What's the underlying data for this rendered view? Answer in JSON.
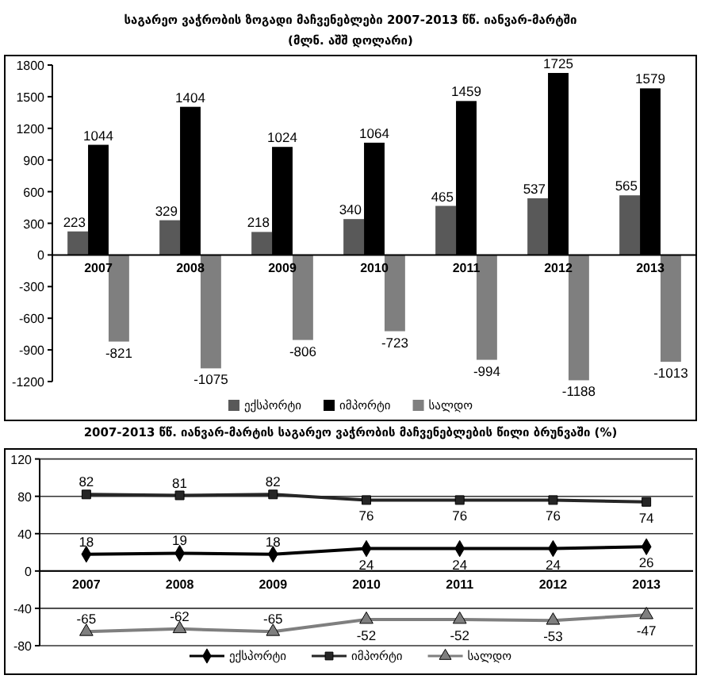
{
  "chart_data": [
    {
      "type": "bar",
      "title": "საგარეო ვაჭრობის ზოგადი მაჩვენებლები 2007-2013 წწ. იანვარ-მარტში",
      "subtitle": "(მლნ. აშშ დოლარი)",
      "categories": [
        "2007",
        "2008",
        "2009",
        "2010",
        "2011",
        "2012",
        "2013"
      ],
      "series": [
        {
          "name": "ექსპორტი",
          "color": "#595959",
          "values": [
            223,
            329,
            218,
            340,
            465,
            537,
            565
          ]
        },
        {
          "name": "იმპორტი",
          "color": "#000000",
          "values": [
            1044,
            1404,
            1024,
            1064,
            1459,
            1725,
            1579
          ]
        },
        {
          "name": "სალდო",
          "color": "#7f7f7f",
          "values": [
            -821,
            -1075,
            -806,
            -723,
            -994,
            -1188,
            -1013
          ]
        }
      ],
      "ylim": [
        -1200,
        1800
      ],
      "yticks": [
        -1200,
        -900,
        -600,
        -300,
        0,
        300,
        600,
        900,
        1200,
        1500,
        1800
      ],
      "data_labels": true,
      "legend": "bottom"
    },
    {
      "type": "line",
      "title": "2007-2013 წწ. იანვარ-მარტის საგარეო ვაჭრობის მაჩვენებლების წილი ბრუნვაში (%)",
      "categories": [
        "2007",
        "2008",
        "2009",
        "2010",
        "2011",
        "2012",
        "2013"
      ],
      "series": [
        {
          "name": "ექსპორტი",
          "color": "#000000",
          "marker": "diamond",
          "values": [
            18,
            19,
            18,
            24,
            24,
            24,
            26
          ]
        },
        {
          "name": "იმპორტი",
          "color": "#262626",
          "marker": "square",
          "values": [
            82,
            81,
            82,
            76,
            76,
            76,
            74
          ]
        },
        {
          "name": "სალდო",
          "color": "#7f7f7f",
          "marker": "triangle",
          "values": [
            -65,
            -62,
            -65,
            -52,
            -52,
            -53,
            -47
          ]
        }
      ],
      "ylim": [
        -80,
        120
      ],
      "yticks": [
        -80,
        -40,
        0,
        40,
        80,
        120
      ],
      "grid": "y",
      "data_labels": true,
      "legend": "bottom",
      "line_style": "solid"
    }
  ]
}
